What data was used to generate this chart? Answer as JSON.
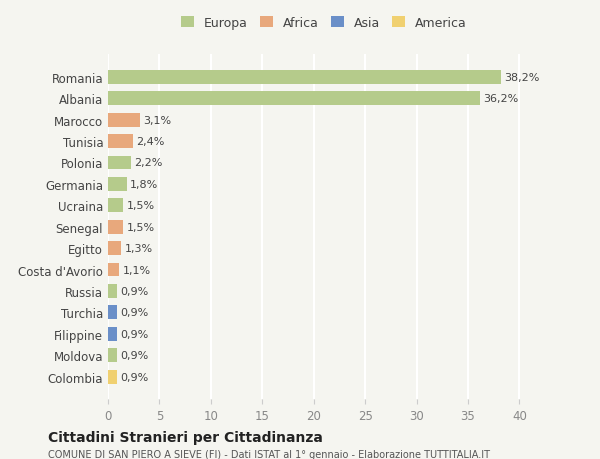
{
  "countries": [
    "Romania",
    "Albania",
    "Marocco",
    "Tunisia",
    "Polonia",
    "Germania",
    "Ucraina",
    "Senegal",
    "Egitto",
    "Costa d'Avorio",
    "Russia",
    "Turchia",
    "Filippine",
    "Moldova",
    "Colombia"
  ],
  "values": [
    38.2,
    36.2,
    3.1,
    2.4,
    2.2,
    1.8,
    1.5,
    1.5,
    1.3,
    1.1,
    0.9,
    0.9,
    0.9,
    0.9,
    0.9
  ],
  "labels": [
    "38,2%",
    "36,2%",
    "3,1%",
    "2,4%",
    "2,2%",
    "1,8%",
    "1,5%",
    "1,5%",
    "1,3%",
    "1,1%",
    "0,9%",
    "0,9%",
    "0,9%",
    "0,9%",
    "0,9%"
  ],
  "continents": [
    "Europa",
    "Europa",
    "Africa",
    "Africa",
    "Europa",
    "Europa",
    "Europa",
    "Africa",
    "Africa",
    "Africa",
    "Europa",
    "Asia",
    "Asia",
    "Europa",
    "America"
  ],
  "colors": {
    "Europa": "#b5cb8b",
    "Africa": "#e8a87c",
    "Asia": "#6a8fc8",
    "America": "#f0d070"
  },
  "legend_entries": [
    "Europa",
    "Africa",
    "Asia",
    "America"
  ],
  "title": "Cittadini Stranieri per Cittadinanza",
  "subtitle": "COMUNE DI SAN PIERO A SIEVE (FI) - Dati ISTAT al 1° gennaio - Elaborazione TUTTITALIA.IT",
  "xlim": [
    0,
    42
  ],
  "xticks": [
    0,
    5,
    10,
    15,
    20,
    25,
    30,
    35,
    40
  ],
  "background_color": "#f5f5f0",
  "grid_color": "#ffffff",
  "bar_height": 0.65
}
